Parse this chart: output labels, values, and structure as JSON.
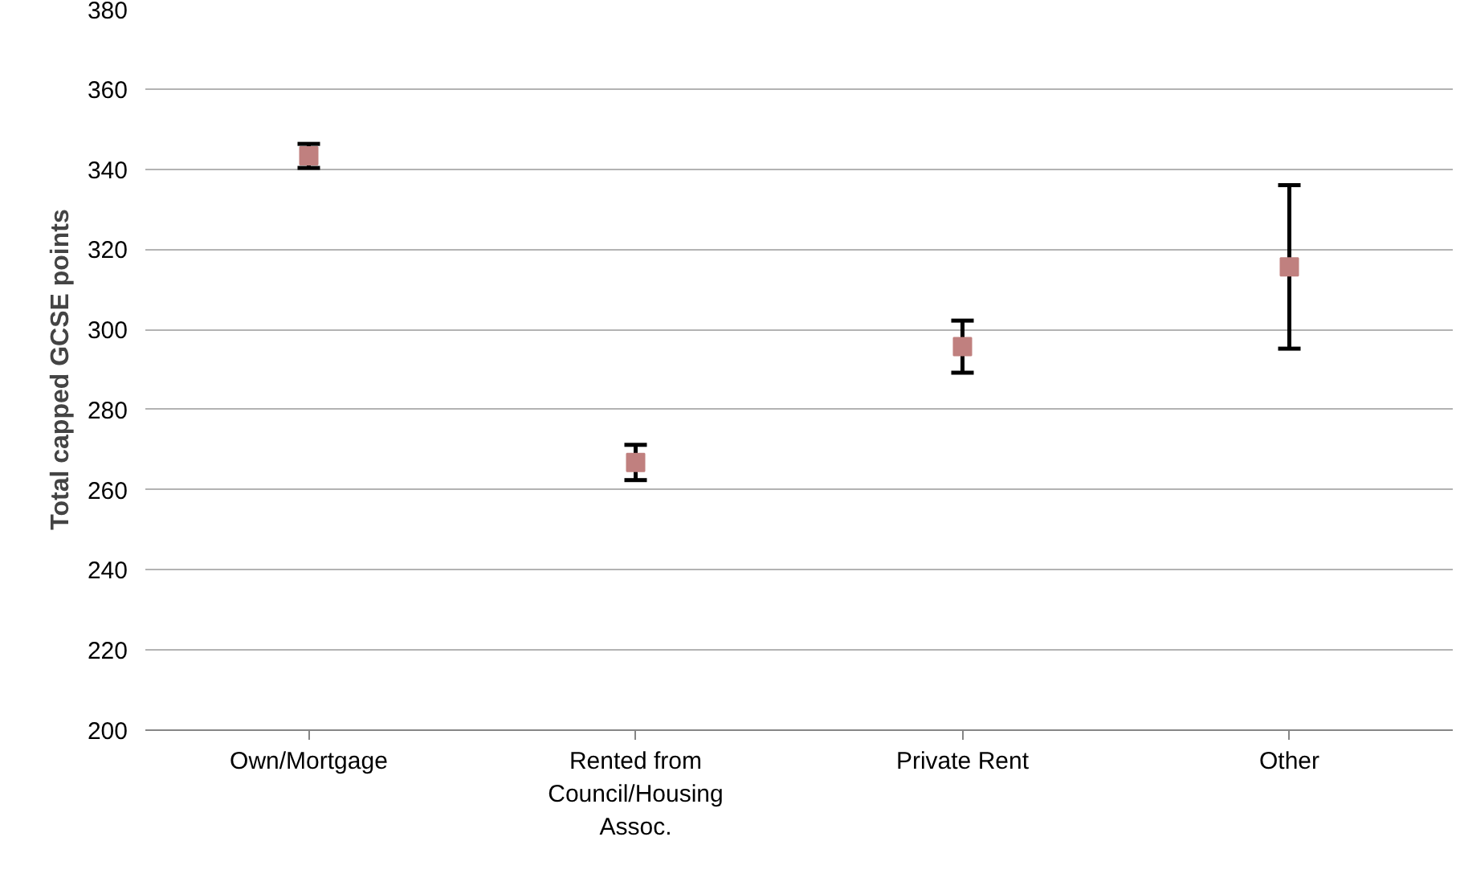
{
  "chart_data": {
    "type": "scatter",
    "ylabel": "Total capped GCSE points",
    "categories": [
      "Own/Mortgage",
      "Rented from Council/Housing Assoc.",
      "Private Rent",
      "Other"
    ],
    "values": [
      343.3,
      266.8,
      295.7,
      315.6
    ],
    "errors": [
      3,
      4.4,
      6.5,
      20.4
    ],
    "color": "#c0807f",
    "marker": "square",
    "ylim": [
      200,
      380
    ],
    "yticks": [
      200,
      220,
      240,
      260,
      280,
      300,
      320,
      340,
      360,
      380
    ],
    "grid": "y"
  }
}
